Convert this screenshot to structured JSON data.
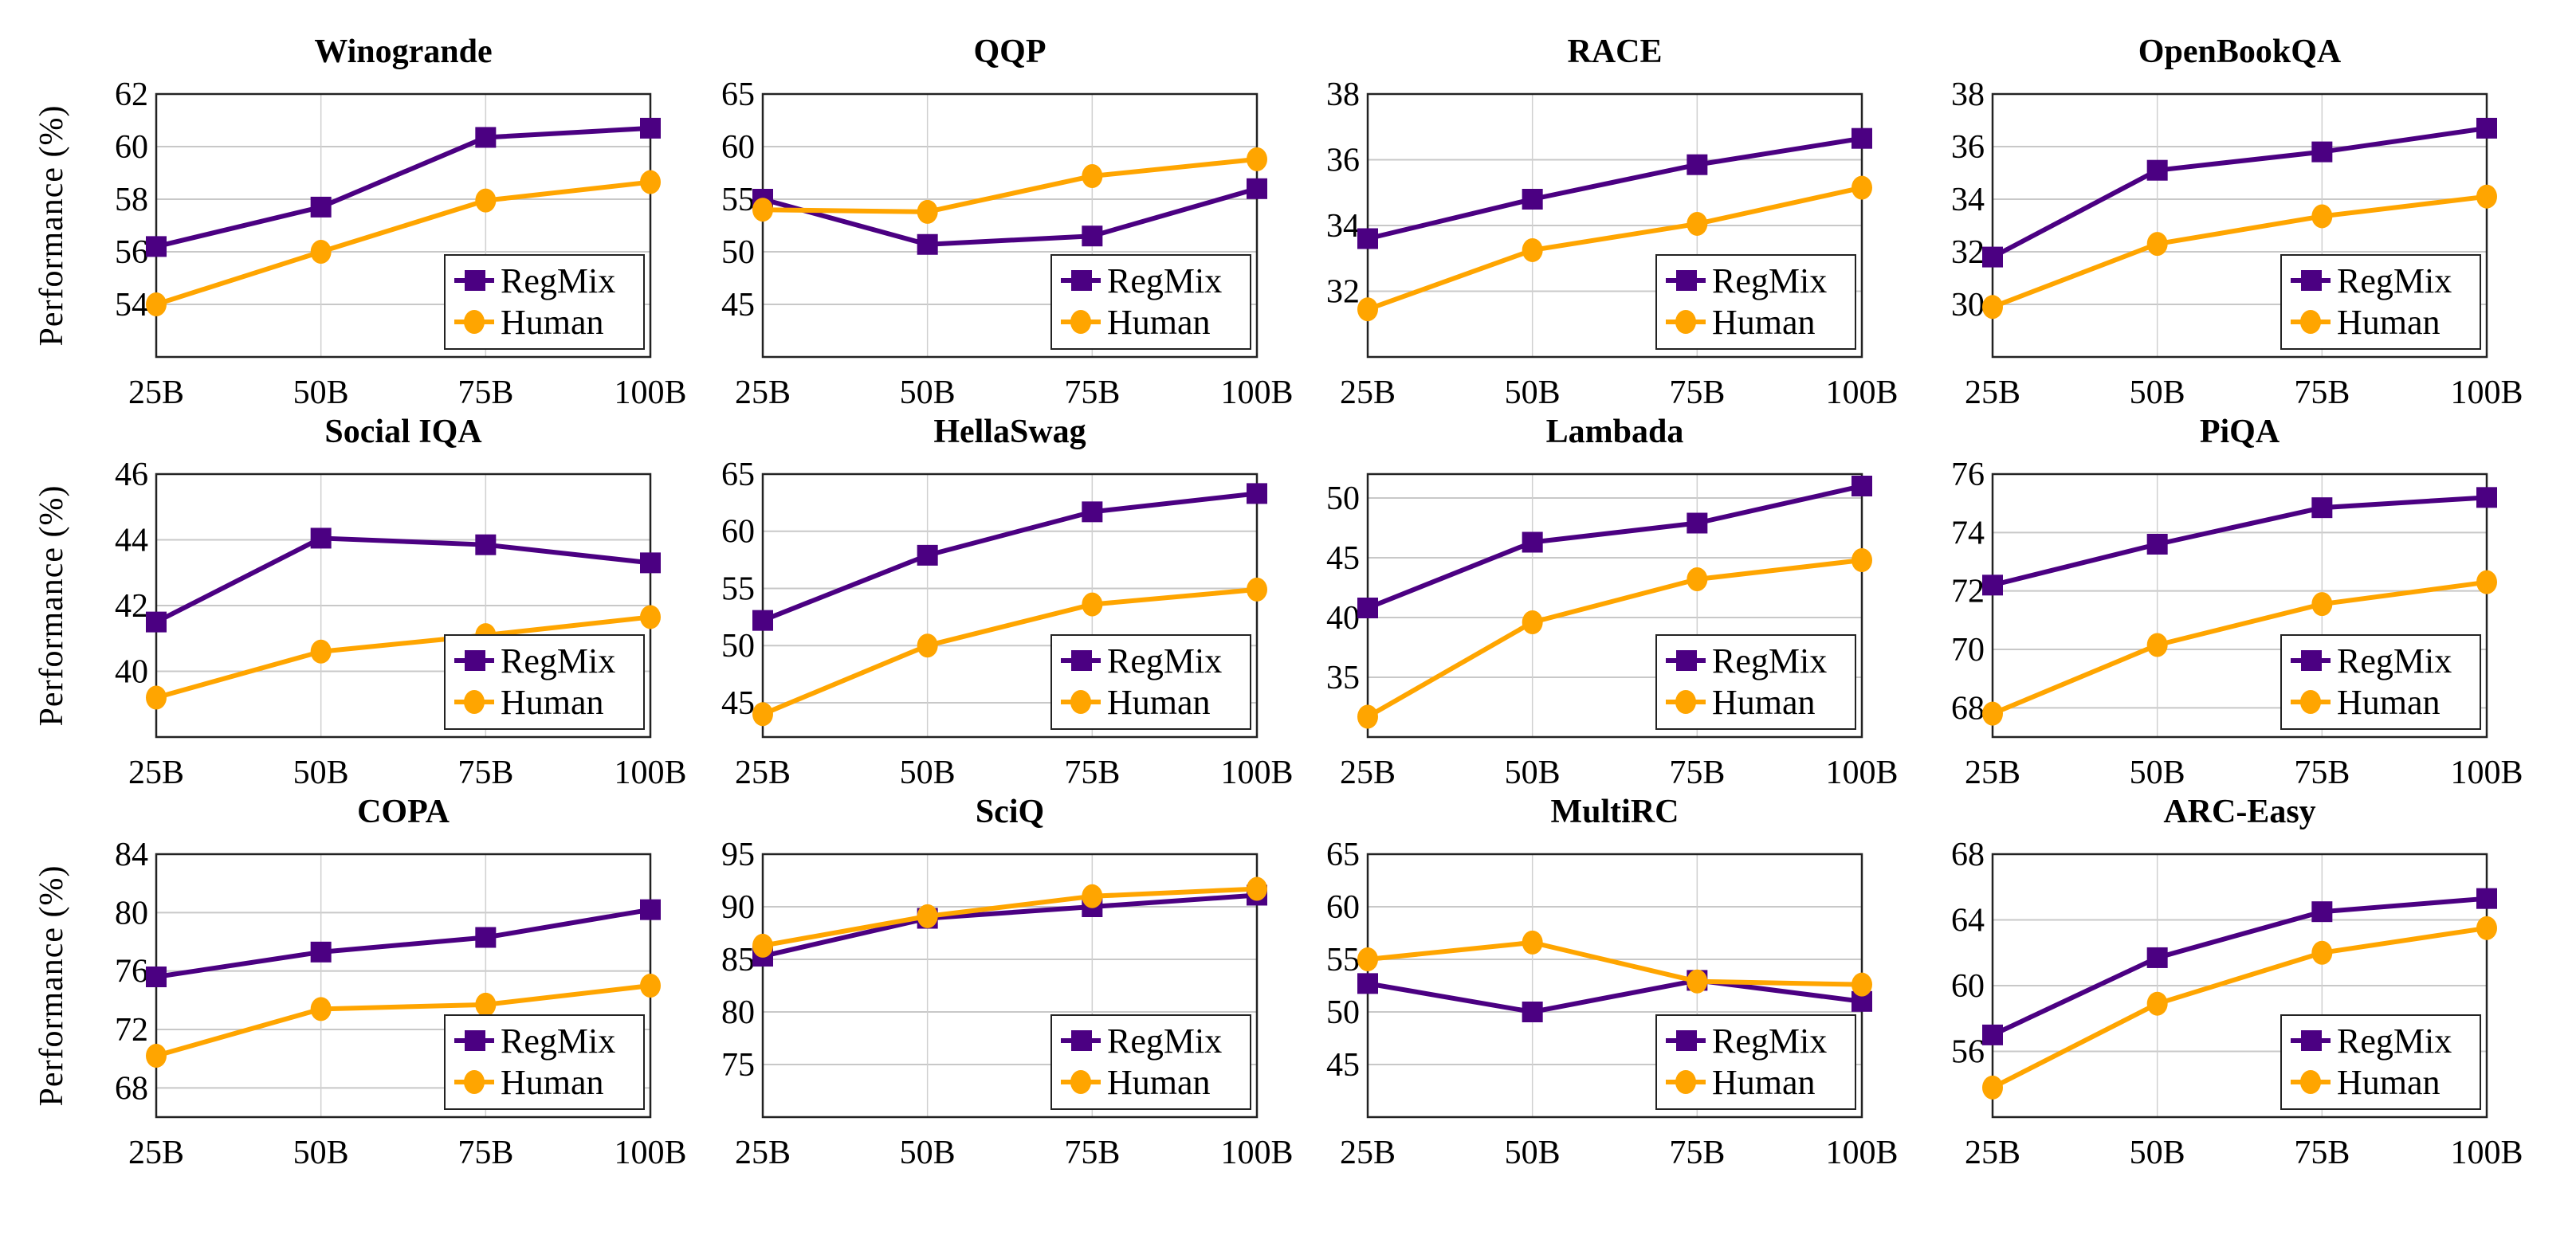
{
  "figure": {
    "ylabel": "Performance (%)",
    "colors": {
      "RegMix": "#4b0082",
      "Human": "#ffa500"
    }
  },
  "chart_data": [
    {
      "type": "line",
      "title": "Winogrande",
      "categories": [
        "25B",
        "50B",
        "75B",
        "100B"
      ],
      "ylim": [
        52,
        62
      ],
      "yticks": [
        54,
        56,
        58,
        60,
        62
      ],
      "ylabel": "Performance (%)",
      "legend": "bottom-right",
      "grid": true,
      "series": [
        {
          "name": "RegMix",
          "marker": "square",
          "values": [
            56.2,
            57.7,
            60.35,
            60.7
          ]
        },
        {
          "name": "Human",
          "marker": "circle",
          "values": [
            54.0,
            56.0,
            57.95,
            58.65
          ]
        }
      ]
    },
    {
      "type": "line",
      "title": "QQP",
      "categories": [
        "25B",
        "50B",
        "75B",
        "100B"
      ],
      "ylim": [
        40,
        65
      ],
      "yticks": [
        45,
        50,
        55,
        60,
        65
      ],
      "ylabel": "",
      "legend": "bottom-right",
      "grid": true,
      "series": [
        {
          "name": "RegMix",
          "marker": "square",
          "values": [
            55.0,
            50.7,
            51.5,
            56.0
          ]
        },
        {
          "name": "Human",
          "marker": "circle",
          "values": [
            54.0,
            53.8,
            57.2,
            58.8
          ]
        }
      ]
    },
    {
      "type": "line",
      "title": "RACE",
      "categories": [
        "25B",
        "50B",
        "75B",
        "100B"
      ],
      "ylim": [
        30,
        38
      ],
      "yticks": [
        32,
        34,
        36,
        38
      ],
      "ylabel": "",
      "legend": "bottom-right",
      "grid": true,
      "series": [
        {
          "name": "RegMix",
          "marker": "square",
          "values": [
            33.6,
            34.8,
            35.85,
            36.65
          ]
        },
        {
          "name": "Human",
          "marker": "circle",
          "values": [
            31.45,
            33.25,
            34.05,
            35.15
          ]
        }
      ]
    },
    {
      "type": "line",
      "title": "OpenBookQA",
      "categories": [
        "25B",
        "50B",
        "75B",
        "100B"
      ],
      "ylim": [
        28,
        38
      ],
      "yticks": [
        30,
        32,
        34,
        36,
        38
      ],
      "ylabel": "",
      "legend": "bottom-right",
      "grid": true,
      "series": [
        {
          "name": "RegMix",
          "marker": "square",
          "values": [
            31.8,
            35.1,
            35.8,
            36.7
          ]
        },
        {
          "name": "Human",
          "marker": "circle",
          "values": [
            29.9,
            32.3,
            33.35,
            34.1
          ]
        }
      ]
    },
    {
      "type": "line",
      "title": "Social IQA",
      "categories": [
        "25B",
        "50B",
        "75B",
        "100B"
      ],
      "ylim": [
        38,
        46
      ],
      "yticks": [
        40,
        42,
        44,
        46
      ],
      "ylabel": "Performance (%)",
      "legend": "bottom-right",
      "grid": true,
      "series": [
        {
          "name": "RegMix",
          "marker": "square",
          "values": [
            41.5,
            44.05,
            43.85,
            43.3
          ]
        },
        {
          "name": "Human",
          "marker": "circle",
          "values": [
            39.2,
            40.6,
            41.1,
            41.65
          ]
        }
      ]
    },
    {
      "type": "line",
      "title": "HellaSwag",
      "categories": [
        "25B",
        "50B",
        "75B",
        "100B"
      ],
      "ylim": [
        42,
        65
      ],
      "yticks": [
        45,
        50,
        55,
        60,
        65
      ],
      "ylabel": "",
      "legend": "bottom-right",
      "grid": true,
      "series": [
        {
          "name": "RegMix",
          "marker": "square",
          "values": [
            52.2,
            57.9,
            61.7,
            63.3
          ]
        },
        {
          "name": "Human",
          "marker": "circle",
          "values": [
            44.0,
            50.0,
            53.6,
            54.9
          ]
        }
      ]
    },
    {
      "type": "line",
      "title": "Lambada",
      "categories": [
        "25B",
        "50B",
        "75B",
        "100B"
      ],
      "ylim": [
        30,
        52
      ],
      "yticks": [
        35,
        40,
        45,
        50
      ],
      "ylabel": "",
      "legend": "bottom-right",
      "grid": true,
      "series": [
        {
          "name": "RegMix",
          "marker": "square",
          "values": [
            40.8,
            46.3,
            47.9,
            51.0
          ]
        },
        {
          "name": "Human",
          "marker": "circle",
          "values": [
            31.7,
            39.6,
            43.2,
            44.8
          ]
        }
      ]
    },
    {
      "type": "line",
      "title": "PiQA",
      "categories": [
        "25B",
        "50B",
        "75B",
        "100B"
      ],
      "ylim": [
        67,
        76
      ],
      "yticks": [
        68,
        70,
        72,
        74,
        76
      ],
      "ylabel": "",
      "legend": "bottom-right",
      "grid": true,
      "series": [
        {
          "name": "RegMix",
          "marker": "square",
          "values": [
            72.2,
            73.6,
            74.85,
            75.2
          ]
        },
        {
          "name": "Human",
          "marker": "circle",
          "values": [
            67.8,
            70.15,
            71.55,
            72.3
          ]
        }
      ]
    },
    {
      "type": "line",
      "title": "COPA",
      "categories": [
        "25B",
        "50B",
        "75B",
        "100B"
      ],
      "ylim": [
        66,
        84
      ],
      "yticks": [
        68,
        72,
        76,
        80,
        84
      ],
      "ylabel": "Performance (%)",
      "legend": "bottom-right",
      "grid": true,
      "series": [
        {
          "name": "RegMix",
          "marker": "square",
          "values": [
            75.6,
            77.3,
            78.3,
            80.2
          ]
        },
        {
          "name": "Human",
          "marker": "circle",
          "values": [
            70.2,
            73.4,
            73.7,
            75.0
          ]
        }
      ]
    },
    {
      "type": "line",
      "title": "SciQ",
      "categories": [
        "25B",
        "50B",
        "75B",
        "100B"
      ],
      "ylim": [
        70,
        95
      ],
      "yticks": [
        75,
        80,
        85,
        90,
        95
      ],
      "ylabel": "",
      "legend": "bottom-right",
      "grid": true,
      "series": [
        {
          "name": "RegMix",
          "marker": "square",
          "values": [
            85.3,
            88.9,
            90.0,
            91.1
          ]
        },
        {
          "name": "Human",
          "marker": "circle",
          "values": [
            86.3,
            89.1,
            91.0,
            91.7
          ]
        }
      ]
    },
    {
      "type": "line",
      "title": "MultiRC",
      "categories": [
        "25B",
        "50B",
        "75B",
        "100B"
      ],
      "ylim": [
        40,
        65
      ],
      "yticks": [
        45,
        50,
        55,
        60,
        65
      ],
      "ylabel": "",
      "legend": "bottom-right",
      "grid": true,
      "series": [
        {
          "name": "RegMix",
          "marker": "square",
          "values": [
            52.7,
            50.0,
            53.0,
            51.0
          ]
        },
        {
          "name": "Human",
          "marker": "circle",
          "values": [
            55.0,
            56.6,
            52.9,
            52.6
          ]
        }
      ]
    },
    {
      "type": "line",
      "title": "ARC-Easy",
      "categories": [
        "25B",
        "50B",
        "75B",
        "100B"
      ],
      "ylim": [
        52,
        68
      ],
      "yticks": [
        56,
        60,
        64,
        68
      ],
      "ylabel": "",
      "legend": "bottom-right",
      "grid": true,
      "series": [
        {
          "name": "RegMix",
          "marker": "square",
          "values": [
            57.0,
            61.7,
            64.5,
            65.3
          ]
        },
        {
          "name": "Human",
          "marker": "circle",
          "values": [
            53.8,
            58.9,
            62.0,
            63.5
          ]
        }
      ]
    }
  ]
}
